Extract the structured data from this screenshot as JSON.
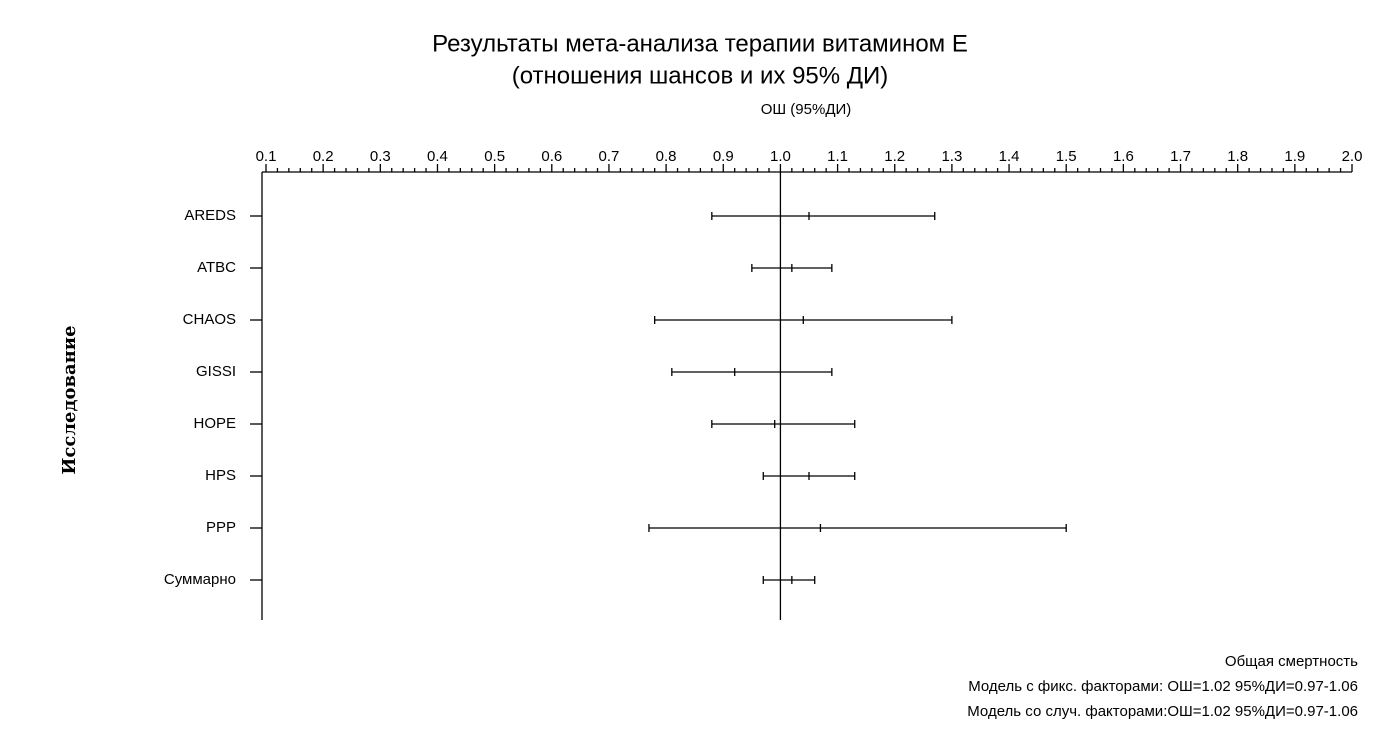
{
  "chart_data": {
    "type": "forest",
    "title": [
      "Результаты мета-анализа терапии витамином Е",
      "(отношения шансов и их 95% ДИ)"
    ],
    "x_label": "ОШ (95%ДИ)",
    "y_label": "Исследование",
    "categories": [
      "AREDS",
      "ATBC",
      "CHAOS",
      "GISSI",
      "HOPE",
      "HPS",
      "PPP",
      "Суммарно"
    ],
    "values": [
      1.05,
      1.02,
      1.04,
      0.92,
      0.99,
      1.05,
      1.07,
      1.02
    ],
    "lower": [
      0.88,
      0.95,
      0.78,
      0.81,
      0.88,
      0.97,
      0.77,
      0.97
    ],
    "upper": [
      1.27,
      1.09,
      1.3,
      1.09,
      1.13,
      1.13,
      1.5,
      1.06
    ],
    "color": "#000000",
    "ref_line": 1,
    "xlim": [
      0.1,
      2.0
    ],
    "xticks": [
      0.1,
      0.2,
      0.3,
      0.4,
      0.5,
      0.6,
      0.7,
      0.8,
      0.9,
      {
        "value": 1,
        "label": "1.0"
      },
      1.1,
      1.2,
      1.3,
      1.4,
      1.5,
      1.6,
      1.7,
      1.8,
      1.9,
      {
        "value": 2,
        "label": "2.0"
      }
    ],
    "notes": [
      "Общая смертность",
      "Модель с фикс. факторами: ОШ=1.02 95%ДИ=0.97-1.06",
      "Модель со случ. факторами:ОШ=1.02 95%ДИ=0.97-1.06"
    ]
  }
}
